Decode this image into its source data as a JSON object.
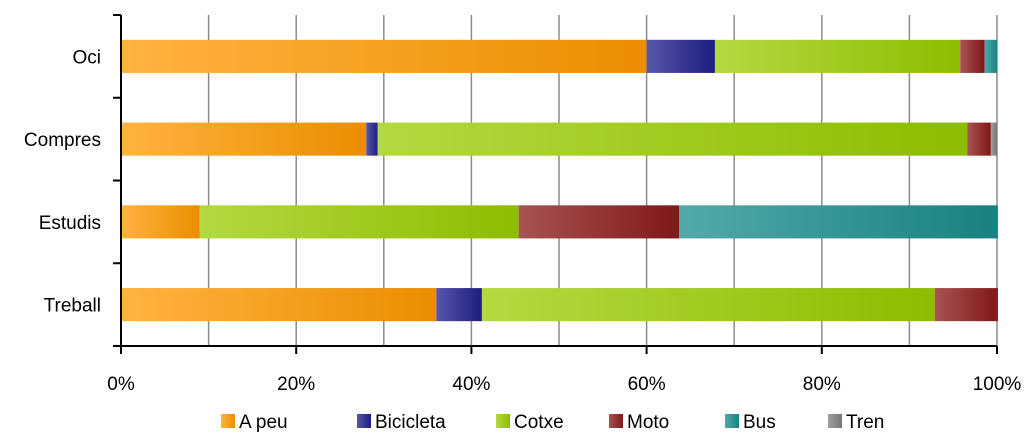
{
  "chart_data": {
    "type": "bar",
    "orientation": "horizontal",
    "stacked": "percent",
    "categories": [
      "Oci",
      "Compres",
      "Estudis",
      "Treball"
    ],
    "series": [
      {
        "name": "A peu",
        "values": [
          60.0,
          28.0,
          9.0,
          36.0
        ],
        "color": "#ff9900"
      },
      {
        "name": "Bicicleta",
        "values": [
          7.8,
          1.3,
          0.0,
          5.2
        ],
        "color": "#1f1f8c"
      },
      {
        "name": "Cotxe",
        "values": [
          28.0,
          67.3,
          36.4,
          51.7
        ],
        "color": "#99cc00"
      },
      {
        "name": "Moto",
        "values": [
          2.8,
          2.7,
          18.3,
          7.2
        ],
        "color": "#8b1a1a"
      },
      {
        "name": "Bus",
        "values": [
          1.4,
          0.0,
          36.4,
          0.0
        ],
        "color": "#1a8c8c"
      },
      {
        "name": "Tren",
        "values": [
          0.0,
          0.7,
          0.0,
          0.0
        ],
        "color": "#808080"
      }
    ],
    "xlim": [
      0,
      100
    ],
    "xticks": [
      "0%",
      "20%",
      "40%",
      "60%",
      "80%",
      "100%"
    ],
    "grid": "vertical every 10%",
    "legend_position": "bottom"
  }
}
